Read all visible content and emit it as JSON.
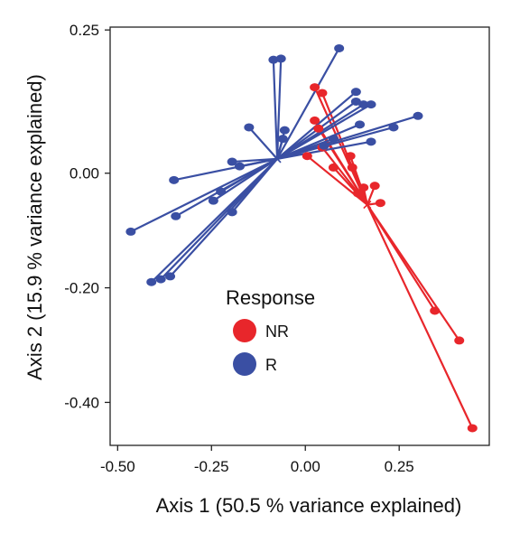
{
  "chart_data": {
    "type": "scatter",
    "xlabel": "Axis 1 (50.5 % variance explained)",
    "ylabel": "Axis 2 (15.9 % variance explained)",
    "xlim": [
      -0.52,
      0.49
    ],
    "ylim": [
      -0.475,
      0.255
    ],
    "xticks": [
      -0.5,
      -0.25,
      0.0,
      0.25
    ],
    "xtick_labels": [
      "-0.50",
      "-0.25",
      "0.00",
      "0.25"
    ],
    "yticks": [
      0.25,
      0.0,
      -0.2,
      -0.4
    ],
    "ytick_labels": [
      "0.25",
      "0.00",
      "-0.20",
      "-0.40"
    ],
    "grid": false,
    "legend": {
      "title": "Response",
      "position": "lower-center",
      "entries": [
        {
          "label": "NR",
          "color": "#e8262b"
        },
        {
          "label": "R",
          "color": "#3a4fa3"
        }
      ]
    },
    "series": [
      {
        "name": "NR",
        "color": "#e8262b",
        "centroid": [
          0.165,
          -0.055
        ],
        "points": [
          [
            0.445,
            -0.445
          ],
          [
            0.41,
            -0.292
          ],
          [
            0.345,
            -0.24
          ],
          [
            0.2,
            -0.052
          ],
          [
            0.185,
            -0.022
          ],
          [
            0.155,
            -0.025
          ],
          [
            0.14,
            -0.035
          ],
          [
            0.125,
            0.01
          ],
          [
            0.12,
            0.03
          ],
          [
            0.075,
            0.01
          ],
          [
            0.045,
            0.045
          ],
          [
            0.035,
            0.078
          ],
          [
            0.025,
            0.092
          ],
          [
            0.045,
            0.14
          ],
          [
            0.025,
            0.15
          ],
          [
            0.005,
            0.03
          ]
        ]
      },
      {
        "name": "R",
        "color": "#3a4fa3",
        "centroid": [
          -0.075,
          0.025
        ],
        "points": [
          [
            -0.065,
            0.2
          ],
          [
            -0.085,
            0.198
          ],
          [
            0.09,
            0.218
          ],
          [
            0.135,
            0.142
          ],
          [
            0.135,
            0.125
          ],
          [
            0.155,
            0.12
          ],
          [
            0.175,
            0.12
          ],
          [
            0.145,
            0.085
          ],
          [
            0.235,
            0.08
          ],
          [
            0.3,
            0.1
          ],
          [
            0.175,
            0.055
          ],
          [
            0.075,
            0.06
          ],
          [
            0.05,
            0.048
          ],
          [
            -0.15,
            0.08
          ],
          [
            -0.055,
            0.075
          ],
          [
            -0.06,
            0.06
          ],
          [
            -0.195,
            0.02
          ],
          [
            -0.175,
            0.012
          ],
          [
            -0.35,
            -0.012
          ],
          [
            -0.225,
            -0.032
          ],
          [
            -0.245,
            -0.048
          ],
          [
            -0.345,
            -0.075
          ],
          [
            -0.465,
            -0.102
          ],
          [
            -0.195,
            -0.068
          ],
          [
            -0.41,
            -0.19
          ],
          [
            -0.385,
            -0.185
          ],
          [
            -0.36,
            -0.18
          ]
        ]
      }
    ]
  }
}
